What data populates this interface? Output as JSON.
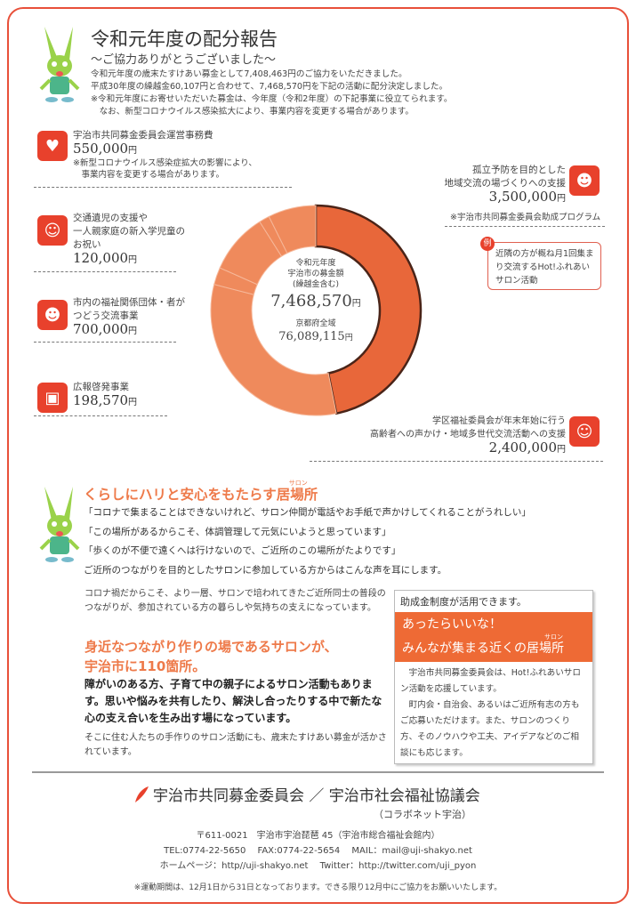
{
  "header": {
    "title": "令和元年度の配分報告",
    "subtitle": "～ご協力ありがとうございました～",
    "intro": [
      "令和元年度の歳末たすけあい募金として7,408,463円のご協力をいただきました。",
      "平成30年度の繰越金60,107円と合わせて、7,468,570円を下記の活動に配分決定しました。",
      "※令和元年度にお寄せいただいた募金は、今年度（令和2年度）の下記事業に役立てられます。",
      "　なお、新型コロナウイルス感染拡大により、事業内容を変更する場合があります。"
    ]
  },
  "items": [
    {
      "label": "宇治市共同募金委員会運営事務費",
      "amount": "550,000",
      "note": "※新型コロナウイルス感染症拡大の影響により、\n　事業内容を変更する場合があります。",
      "icon": "heart-hands-icon"
    },
    {
      "label": "交通遺児の支援や\n一人親家庭の新入学児童の\nお祝い",
      "amount": "120,000",
      "icon": "child-icon"
    },
    {
      "label": "市内の福祉関係団体・者が\nつどう交流事業",
      "amount": "700,000",
      "icon": "group-icon"
    },
    {
      "label": "広報啓発事業",
      "amount": "198,570",
      "icon": "presentation-icon"
    },
    {
      "label": "孤立予防を目的とした\n地域交流の場づくりへの支援",
      "amount": "3,500,000",
      "note": "※宇治市共同募金委員会助成プログラム",
      "icon": "group-icon"
    },
    {
      "label": "学区福祉委員会が年末年始に行う\n高齢者への声かけ・地域多世代交流活動への支援",
      "amount": "2,400,000",
      "icon": "elderly-support-icon"
    }
  ],
  "yen": "円",
  "example": {
    "badge": "例",
    "text": "近隣の方が概ね月1回集まり交流するHot!ふれあいサロン活動"
  },
  "chart_data": {
    "type": "pie",
    "donut": true,
    "categories": [
      "孤立予防を目的とした地域交流の場づくりへの支援",
      "学区福祉委員会が年末年始に行う高齢者への声かけ・地域多世代交流活動への支援",
      "広報啓発事業",
      "市内の福祉関係団体・者がつどう交流事業",
      "交通遺児の支援や一人親家庭の新入学児童のお祝い",
      "宇治市共同募金委員会運営事務費"
    ],
    "values": [
      3500000,
      2400000,
      198570,
      700000,
      120000,
      550000
    ],
    "colors": [
      "#e8673a",
      "#ef8a5c",
      "#ef8a5c",
      "#ef8a5c",
      "#ef8a5c",
      "#ef8a5c"
    ],
    "center": {
      "l1": "令和元年度",
      "l2": "宇治市の募金額",
      "l3": "(繰越金含む)",
      "total": "7,468,570",
      "l4": "京都府全域",
      "total2": "76,089,115"
    }
  },
  "salon": {
    "title_a": "くらしにハリと安心をもたらす",
    "title_b": "居場所",
    "ruby": "サロン",
    "quotes": [
      "「コロナで集まることはできないけれど、サロン仲間が電話やお手紙で声かけしてくれることがうれしい」",
      "「この場所があるからこそ、体調管理して元気にいようと思っています」",
      "「歩くのが不便で遠くへは行けないので、ご近所のこの場所がたよりです」",
      "ご近所のつながりを目的としたサロンに参加している方からはこんな声を耳にします。"
    ],
    "p1": "コロナ禍だからこそ、より一層、サロンで培われてきたご近所同士の普段のつながりが、参加されている方の暮らしや気持ちの支えになっています。",
    "h2a": "身近なつながり作りの場であるサロンが、",
    "h2b": "宇治市に110箇所。",
    "p2": "障がいのある方、子育て中の親子によるサロン活動もあります。思いや悩みを共有したり、解決し合ったりする中で新たな心の支え合いを生み出す場になっています。",
    "p3": "そこに住む人たちの手作りのサロン活動にも、歳末たすけあい募金が活かされています。"
  },
  "box": {
    "head": "助成金制度が活用できます。",
    "band1": "あったらいいな！",
    "band2": "みんなが集まる近くの居場所",
    "ruby": "サロン",
    "body1": "　宇治市共同募金委員会は、Hot!ふれあいサロン活動を応援しています。",
    "body2": "　町内会・自治会、あるいはご近所有志の方もご応募いただけます。また、サロンのつくり方、そのノウハウや工夫、アイデアなどのご相談にも応じます。"
  },
  "footer": {
    "org": "宇治市共同募金委員会 ／ 宇治市社会福祉協議会",
    "nick": "（コラボネット宇治）",
    "addr": "〒611-0021　宇治市宇治琵琶 45（宇治市総合福祉会館内）",
    "contact": "TEL:0774-22-5650　 FAX:0774-22-5654　 MAIL：mail@uji-shakyo.net",
    "web": "ホームページ：http//uji-shakyo.net　 Twitter：http://twitter.com/uji_pyon",
    "period": "※運動期間は、12月1日から31日となっております。できる限り12月中にご協力をお願いいたします。"
  }
}
